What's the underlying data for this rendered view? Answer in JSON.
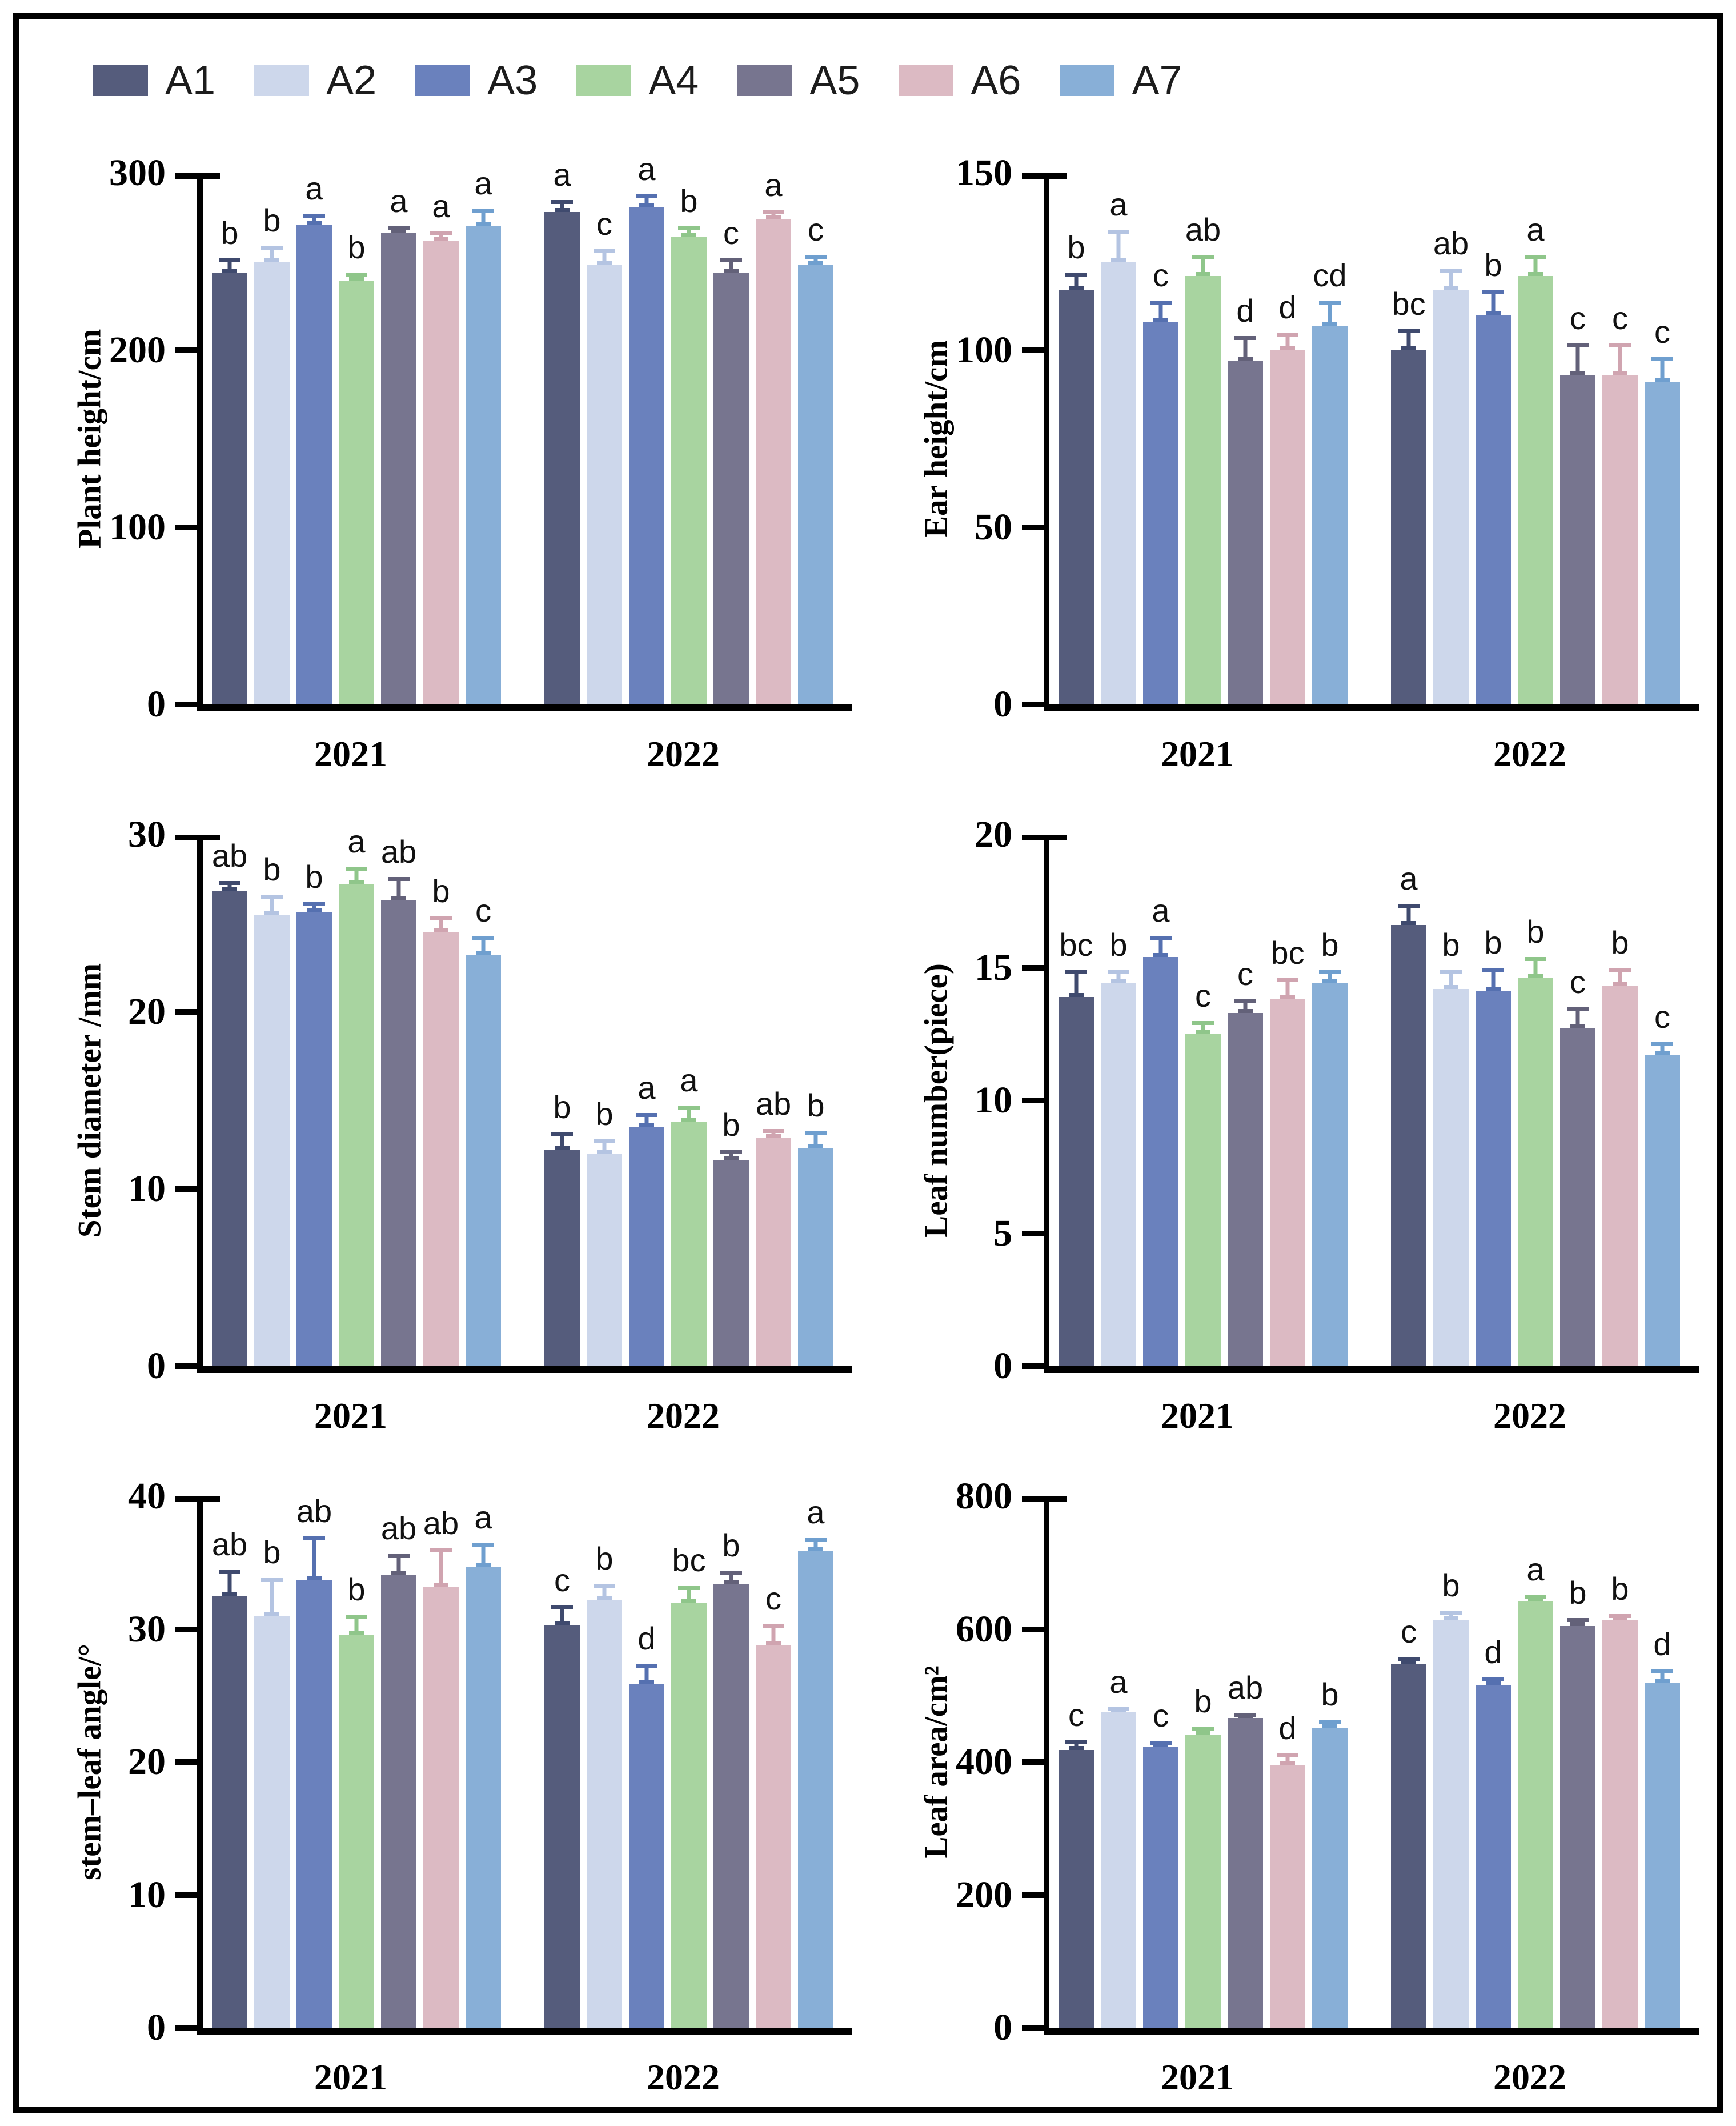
{
  "figure": {
    "background": "#ffffff",
    "border_color": "#000000",
    "categories": [
      "2021",
      "2022"
    ]
  },
  "legend": {
    "items": [
      {
        "label": "A1",
        "color": "#555c7c",
        "err_color": "#3f4a6e"
      },
      {
        "label": "A2",
        "color": "#cdd7eb",
        "err_color": "#b4c4e2"
      },
      {
        "label": "A3",
        "color": "#6a81bd",
        "err_color": "#5570b0"
      },
      {
        "label": "A4",
        "color": "#a8d4a0",
        "err_color": "#8fc68a"
      },
      {
        "label": "A5",
        "color": "#77758f",
        "err_color": "#636179"
      },
      {
        "label": "A6",
        "color": "#dcbac3",
        "err_color": "#d0a4b0"
      },
      {
        "label": "A7",
        "color": "#88afd7",
        "err_color": "#6f9fcf"
      }
    ]
  },
  "chart_data": [
    {
      "type": "bar",
      "ylabel": "Plant height/cm",
      "ylim": [
        0,
        300
      ],
      "yticks": [
        0,
        100,
        200,
        300
      ],
      "categories": [
        "2021",
        "2022"
      ],
      "series": [
        {
          "name": "A1",
          "values": [
            244,
            278
          ],
          "err": [
            8,
            7
          ],
          "letters": [
            "b",
            "a"
          ]
        },
        {
          "name": "A2",
          "values": [
            250,
            248
          ],
          "err": [
            9,
            9
          ],
          "letters": [
            "b",
            "c"
          ]
        },
        {
          "name": "A3",
          "values": [
            271,
            281
          ],
          "err": [
            6,
            7
          ],
          "letters": [
            "a",
            "a"
          ]
        },
        {
          "name": "A4",
          "values": [
            239,
            264
          ],
          "err": [
            5,
            6
          ],
          "letters": [
            "b",
            "b"
          ]
        },
        {
          "name": "A5",
          "values": [
            266,
            244
          ],
          "err": [
            4,
            8
          ],
          "letters": [
            "a",
            "c"
          ]
        },
        {
          "name": "A6",
          "values": [
            262,
            274
          ],
          "err": [
            5,
            5
          ],
          "letters": [
            "a",
            "a"
          ]
        },
        {
          "name": "A7",
          "values": [
            270,
            248
          ],
          "err": [
            10,
            6
          ],
          "letters": [
            "a",
            "c"
          ]
        }
      ]
    },
    {
      "type": "bar",
      "ylabel": "Ear height/cm",
      "ylim": [
        0,
        150
      ],
      "yticks": [
        0,
        50,
        100,
        150
      ],
      "categories": [
        "2021",
        "2022"
      ],
      "series": [
        {
          "name": "A1",
          "values": [
            117,
            100
          ],
          "err": [
            5,
            6
          ],
          "letters": [
            "b",
            "bc"
          ]
        },
        {
          "name": "A2",
          "values": [
            125,
            117
          ],
          "err": [
            9,
            6
          ],
          "letters": [
            "a",
            "ab"
          ]
        },
        {
          "name": "A3",
          "values": [
            108,
            110
          ],
          "err": [
            6,
            7
          ],
          "letters": [
            "c",
            "b"
          ]
        },
        {
          "name": "A4",
          "values": [
            121,
            121
          ],
          "err": [
            6,
            6
          ],
          "letters": [
            "ab",
            "a"
          ]
        },
        {
          "name": "A5",
          "values": [
            97,
            93
          ],
          "err": [
            7,
            9
          ],
          "letters": [
            "d",
            "c"
          ]
        },
        {
          "name": "A6",
          "values": [
            100,
            93
          ],
          "err": [
            5,
            9
          ],
          "letters": [
            "d",
            "c"
          ]
        },
        {
          "name": "A7",
          "values": [
            107,
            91
          ],
          "err": [
            7,
            7
          ],
          "letters": [
            "cd",
            "c"
          ]
        }
      ]
    },
    {
      "type": "bar",
      "ylabel": "Stem diameter /mm",
      "ylim": [
        0,
        30
      ],
      "yticks": [
        0,
        10,
        20,
        30
      ],
      "categories": [
        "2021",
        "2022"
      ],
      "series": [
        {
          "name": "A1",
          "values": [
            26.8,
            12.2
          ],
          "err": [
            0.6,
            1.0
          ],
          "letters": [
            "ab",
            "b"
          ]
        },
        {
          "name": "A2",
          "values": [
            25.5,
            12.0
          ],
          "err": [
            1.1,
            0.8
          ],
          "letters": [
            "b",
            "b"
          ]
        },
        {
          "name": "A3",
          "values": [
            25.6,
            13.5
          ],
          "err": [
            0.6,
            0.8
          ],
          "letters": [
            "b",
            "a"
          ]
        },
        {
          "name": "A4",
          "values": [
            27.2,
            13.8
          ],
          "err": [
            1.0,
            0.9
          ],
          "letters": [
            "a",
            "a"
          ]
        },
        {
          "name": "A5",
          "values": [
            26.3,
            11.6
          ],
          "err": [
            1.3,
            0.6
          ],
          "letters": [
            "ab",
            "b"
          ]
        },
        {
          "name": "A6",
          "values": [
            24.5,
            12.9
          ],
          "err": [
            0.9,
            0.5
          ],
          "letters": [
            "b",
            "ab"
          ]
        },
        {
          "name": "A7",
          "values": [
            23.2,
            12.3
          ],
          "err": [
            1.1,
            1.0
          ],
          "letters": [
            "c",
            "b"
          ]
        }
      ]
    },
    {
      "type": "bar",
      "ylabel": "Leaf number(piece)",
      "ylim": [
        0,
        20
      ],
      "yticks": [
        0,
        5,
        10,
        15,
        20
      ],
      "categories": [
        "2021",
        "2022"
      ],
      "series": [
        {
          "name": "A1",
          "values": [
            13.9,
            16.6
          ],
          "err": [
            1.0,
            0.8
          ],
          "letters": [
            "bc",
            "a"
          ]
        },
        {
          "name": "A2",
          "values": [
            14.4,
            14.2
          ],
          "err": [
            0.5,
            0.7
          ],
          "letters": [
            "b",
            "b"
          ]
        },
        {
          "name": "A3",
          "values": [
            15.4,
            14.1
          ],
          "err": [
            0.8,
            0.9
          ],
          "letters": [
            "a",
            "b"
          ]
        },
        {
          "name": "A4",
          "values": [
            12.5,
            14.6
          ],
          "err": [
            0.5,
            0.8
          ],
          "letters": [
            "c",
            "b"
          ]
        },
        {
          "name": "A5",
          "values": [
            13.3,
            12.7
          ],
          "err": [
            0.5,
            0.8
          ],
          "letters": [
            "c",
            "c"
          ]
        },
        {
          "name": "A6",
          "values": [
            13.8,
            14.3
          ],
          "err": [
            0.8,
            0.7
          ],
          "letters": [
            "bc",
            "b"
          ]
        },
        {
          "name": "A7",
          "values": [
            14.4,
            11.7
          ],
          "err": [
            0.5,
            0.5
          ],
          "letters": [
            "b",
            "c"
          ]
        }
      ]
    },
    {
      "type": "bar",
      "ylabel": "stem–leaf angle/°",
      "ylim": [
        0,
        40
      ],
      "yticks": [
        0,
        10,
        20,
        30,
        40
      ],
      "categories": [
        "2021",
        "2022"
      ],
      "series": [
        {
          "name": "A1",
          "values": [
            32.5,
            30.3
          ],
          "err": [
            2.0,
            1.5
          ],
          "letters": [
            "ab",
            "c"
          ]
        },
        {
          "name": "A2",
          "values": [
            31.0,
            32.2
          ],
          "err": [
            2.9,
            1.2
          ],
          "letters": [
            "b",
            "b"
          ]
        },
        {
          "name": "A3",
          "values": [
            33.7,
            25.9
          ],
          "err": [
            3.3,
            1.5
          ],
          "letters": [
            "ab",
            "d"
          ]
        },
        {
          "name": "A4",
          "values": [
            29.6,
            32.0
          ],
          "err": [
            1.5,
            1.3
          ],
          "letters": [
            "b",
            "bc"
          ]
        },
        {
          "name": "A5",
          "values": [
            34.1,
            33.4
          ],
          "err": [
            1.6,
            1.0
          ],
          "letters": [
            "ab",
            "b"
          ]
        },
        {
          "name": "A6",
          "values": [
            33.2,
            28.8
          ],
          "err": [
            2.9,
            1.6
          ],
          "letters": [
            "ab",
            "c"
          ]
        },
        {
          "name": "A7",
          "values": [
            34.7,
            35.9
          ],
          "err": [
            1.8,
            1.0
          ],
          "letters": [
            "a",
            "a"
          ]
        }
      ]
    },
    {
      "type": "bar",
      "ylabel": "Leaf area/cm²",
      "ylim": [
        0,
        800
      ],
      "yticks": [
        0,
        200,
        400,
        600,
        800
      ],
      "categories": [
        "2021",
        "2022"
      ],
      "series": [
        {
          "name": "A1",
          "values": [
            418,
            548
          ],
          "err": [
            15,
            10
          ],
          "letters": [
            "c",
            "c"
          ]
        },
        {
          "name": "A2",
          "values": [
            475,
            613
          ],
          "err": [
            8,
            15
          ],
          "letters": [
            "a",
            "b"
          ]
        },
        {
          "name": "A3",
          "values": [
            422,
            515
          ],
          "err": [
            10,
            12
          ],
          "letters": [
            "c",
            "d"
          ]
        },
        {
          "name": "A4",
          "values": [
            441,
            642
          ],
          "err": [
            12,
            10
          ],
          "letters": [
            "b",
            "a"
          ]
        },
        {
          "name": "A5",
          "values": [
            466,
            605
          ],
          "err": [
            8,
            12
          ],
          "letters": [
            "ab",
            "b"
          ]
        },
        {
          "name": "A6",
          "values": [
            395,
            613
          ],
          "err": [
            18,
            10
          ],
          "letters": [
            "d",
            "b"
          ]
        },
        {
          "name": "A7",
          "values": [
            452,
            519
          ],
          "err": [
            12,
            20
          ],
          "letters": [
            "b",
            "d"
          ]
        }
      ]
    }
  ]
}
